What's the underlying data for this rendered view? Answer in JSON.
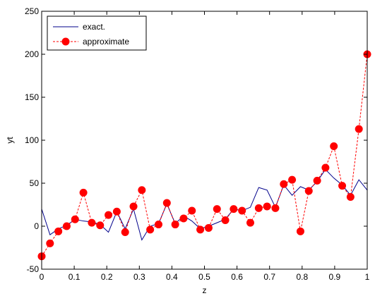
{
  "chart_data": {
    "type": "line",
    "title": "",
    "xlabel": "z",
    "ylabel": "yt",
    "xlim": [
      0,
      1
    ],
    "ylim": [
      -50,
      250
    ],
    "xticks": [
      0,
      0.1,
      0.2,
      0.3,
      0.4,
      0.5,
      0.6,
      0.7,
      0.8,
      0.9,
      1
    ],
    "xtick_labels": [
      "0",
      "0.1",
      "0.2",
      "0.3",
      "0.4",
      "0.5",
      "0.6",
      "0.7",
      "0.8",
      "0.9",
      "1"
    ],
    "yticks": [
      -50,
      0,
      50,
      100,
      150,
      200,
      250
    ],
    "ytick_labels": [
      "-50",
      "0",
      "50",
      "100",
      "150",
      "200",
      "250"
    ],
    "grid": false,
    "legend_position": "top-left",
    "series": [
      {
        "name": "exact.",
        "style": "solid",
        "marker": "none",
        "color": "#00008B",
        "x": [
          0,
          0.0256,
          0.0513,
          0.0769,
          0.1026,
          0.1282,
          0.1538,
          0.1795,
          0.2051,
          0.2308,
          0.2564,
          0.2821,
          0.3077,
          0.3333,
          0.359,
          0.3846,
          0.4103,
          0.4359,
          0.4615,
          0.4872,
          0.5128,
          0.5385,
          0.5641,
          0.5897,
          0.6154,
          0.641,
          0.6667,
          0.6923,
          0.7179,
          0.7436,
          0.7692,
          0.7949,
          0.8205,
          0.8462,
          0.8718,
          0.8974,
          0.9231,
          0.9487,
          0.9744,
          1
        ],
        "y": [
          20,
          -10,
          -3,
          1,
          8,
          6,
          5,
          2,
          -7,
          17,
          -3,
          20,
          -16,
          0,
          3,
          26,
          3,
          12,
          6,
          -3,
          0,
          4,
          8,
          20,
          18,
          22,
          45,
          42,
          22,
          48,
          36,
          46,
          42,
          52,
          66,
          56,
          48,
          36,
          54,
          42
        ]
      },
      {
        "name": "approximate",
        "style": "dashed",
        "marker": "circle",
        "color": "#FF0000",
        "x": [
          0,
          0.0256,
          0.0513,
          0.0769,
          0.1026,
          0.1282,
          0.1538,
          0.1795,
          0.2051,
          0.2308,
          0.2564,
          0.2821,
          0.3077,
          0.3333,
          0.359,
          0.3846,
          0.4103,
          0.4359,
          0.4615,
          0.4872,
          0.5128,
          0.5385,
          0.5641,
          0.5897,
          0.6154,
          0.641,
          0.6667,
          0.6923,
          0.7179,
          0.7436,
          0.7692,
          0.7949,
          0.8205,
          0.8462,
          0.8718,
          0.8974,
          0.9231,
          0.9487,
          0.9744,
          1
        ],
        "y": [
          -35,
          -20,
          -6,
          0,
          8,
          39,
          4,
          1,
          13,
          17,
          -7,
          23,
          42,
          -4,
          2,
          27,
          2,
          9,
          18,
          -4,
          -2,
          20,
          7,
          20,
          18,
          4,
          21,
          23,
          21,
          49,
          54,
          -6,
          41,
          53,
          68,
          93,
          47,
          34,
          113,
          200
        ]
      }
    ]
  }
}
